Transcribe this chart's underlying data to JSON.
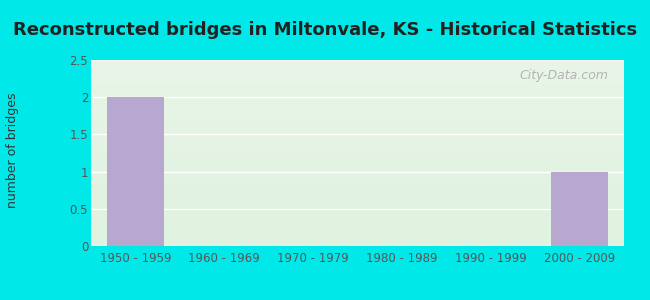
{
  "title": "Reconstructed bridges in Miltonvale, KS - Historical Statistics",
  "ylabel": "number of bridges",
  "categories": [
    "1950 - 1959",
    "1960 - 1969",
    "1970 - 1979",
    "1980 - 1989",
    "1990 - 1999",
    "2000 - 2009"
  ],
  "values": [
    2,
    0,
    0,
    0,
    0,
    1
  ],
  "bar_color": "#b8a8d0",
  "ylim": [
    0,
    2.5
  ],
  "yticks": [
    0,
    0.5,
    1,
    1.5,
    2,
    2.5
  ],
  "background_outer": "#00e8e8",
  "background_inner_top": "#e8f5e8",
  "background_inner_bottom": "#d8efd8",
  "grid_color": "#ffffff",
  "title_fontsize": 13,
  "ylabel_fontsize": 9,
  "tick_fontsize": 8.5,
  "watermark_text": "City-Data.com",
  "ytick_color": "#555555",
  "xtick_color": "#555555"
}
